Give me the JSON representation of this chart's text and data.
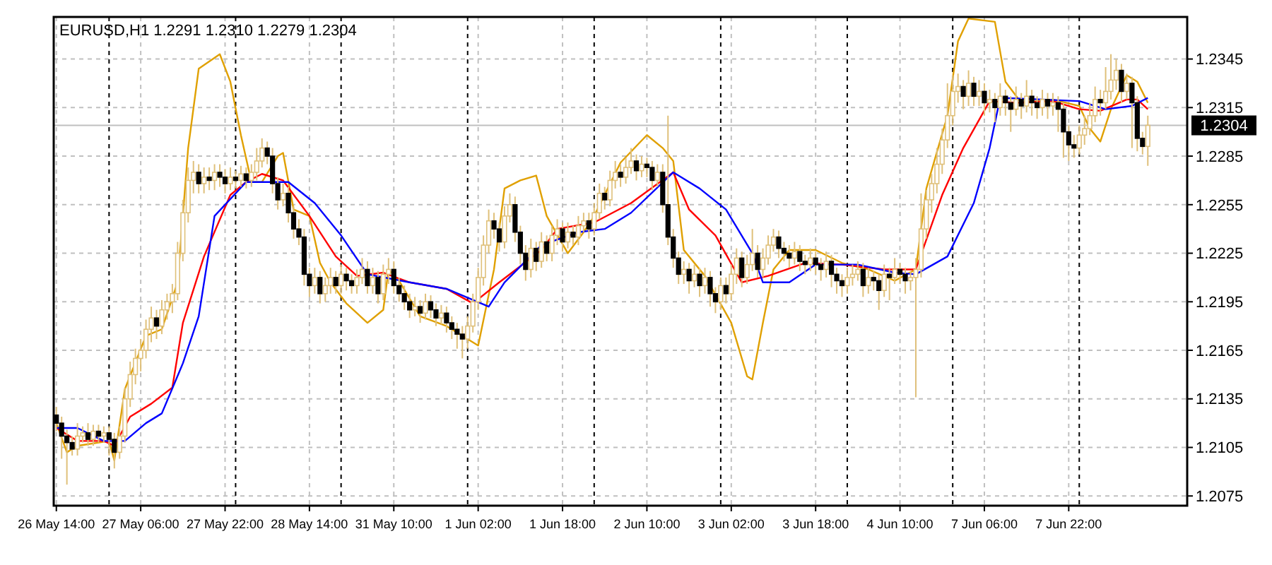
{
  "chart_data": {
    "type": "candlestick",
    "title": "EURUSD,H1  1.2291 1.2310 1.2279 1.2304",
    "color": "#dfc07a",
    "categories": [
      "26 May 14:00",
      null,
      null,
      null,
      null,
      null,
      null,
      null,
      null,
      null,
      null,
      null,
      null,
      null,
      null,
      null,
      "27 May 06:00",
      null,
      null,
      null,
      null,
      null,
      null,
      null,
      null,
      null,
      null,
      null,
      null,
      null,
      null,
      null,
      "27 May 22:00",
      null,
      null,
      null,
      null,
      null,
      null,
      null,
      null,
      null,
      null,
      null,
      null,
      null,
      null,
      null,
      "28 May 14:00",
      null,
      null,
      null,
      null,
      null,
      null,
      null,
      null,
      null,
      null,
      null,
      null,
      null,
      null,
      null,
      "31 May 10:00",
      null,
      null,
      null,
      null,
      null,
      null,
      null,
      null,
      null,
      null,
      null,
      null,
      null,
      null,
      null,
      "1 Jun 02:00",
      null,
      null,
      null,
      null,
      null,
      null,
      null,
      null,
      null,
      null,
      null,
      null,
      null,
      null,
      null,
      "1 Jun 18:00",
      null,
      null,
      null,
      null,
      null,
      null,
      null,
      null,
      null,
      null,
      null,
      null,
      null,
      null,
      null,
      "2 Jun 10:00",
      null,
      null,
      null,
      null,
      null,
      null,
      null,
      null,
      null,
      null,
      null,
      null,
      null,
      null,
      null,
      "3 Jun 02:00",
      null,
      null,
      null,
      null,
      null,
      null,
      null,
      null,
      null,
      null,
      null,
      null,
      null,
      null,
      null,
      "3 Jun 18:00",
      null,
      null,
      null,
      null,
      null,
      null,
      null,
      null,
      null,
      null,
      null,
      null,
      null,
      null,
      null,
      "4 Jun 10:00",
      null,
      null,
      null,
      null,
      null,
      null,
      null,
      null,
      null,
      null,
      null,
      null,
      null,
      null,
      null,
      "7 Jun 06:00",
      null,
      null,
      null,
      null,
      null,
      null,
      null,
      null,
      null,
      null,
      null,
      null,
      null,
      null,
      null,
      "7 Jun 22:00",
      null,
      null,
      null,
      null,
      null,
      null,
      null,
      null,
      null,
      null,
      null,
      null,
      null,
      null,
      null
    ],
    "colors": [
      "#000000",
      "#000000",
      "#000000",
      "#000000",
      "#dfc07a",
      "#dfc07a",
      "#000000",
      "#dfc07a",
      "#000000",
      "#dfc07a",
      "#000000",
      "#000000",
      "#dfc07a",
      "#dfc07a",
      "#dfc07a",
      "#dfc07a",
      "#dfc07a",
      "#dfc07a",
      "#dfc07a",
      "#000000",
      "#dfc07a",
      "#dfc07a",
      "#dfc07a",
      "#dfc07a",
      "#dfc07a",
      "#dfc07a",
      "#dfc07a",
      "#000000",
      "#dfc07a",
      "#000000",
      "#dfc07a",
      "#000000",
      "#000000",
      "#dfc07a",
      "#000000",
      "#dfc07a",
      "#000000",
      "#dfc07a",
      "#dfc07a",
      "#dfc07a",
      "#000000",
      "#000000",
      "#000000",
      "#dfc07a",
      "#000000",
      "#000000",
      "#000000",
      "#000000",
      "#000000",
      "#dfc07a",
      "#000000",
      "#dfc07a",
      "#dfc07a",
      "#000000",
      "#dfc07a",
      "#000000",
      "#000000",
      "#dfc07a",
      "#dfc07a",
      "#000000",
      "#dfc07a",
      "#000000",
      "#dfc07a",
      "#dfc07a",
      "#000000",
      "#000000",
      "#000000",
      "#000000",
      "#dfc07a",
      "#000000",
      "#dfc07a",
      "#000000",
      "#000000",
      "#dfc07a",
      "#000000",
      "#000000",
      "#000000",
      "#000000",
      "#dfc07a",
      "#dfc07a",
      "#dfc07a",
      "#dfc07a",
      "#dfc07a",
      "#000000",
      "#000000",
      "#dfc07a",
      "#dfc07a",
      "#000000",
      "#000000",
      "#000000",
      "#dfc07a",
      "#000000",
      "#dfc07a",
      "#000000",
      "#dfc07a",
      "#dfc07a",
      "#000000",
      "#dfc07a",
      "#000000",
      "#dfc07a",
      "#dfc07a",
      "#000000",
      "#dfc07a",
      "#dfc07a",
      "#000000",
      "#dfc07a",
      "#dfc07a",
      "#000000",
      "#dfc07a",
      "#dfc07a",
      "#000000",
      "#dfc07a",
      "#000000",
      "#000000",
      "#dfc07a",
      "#000000",
      "#000000",
      "#000000",
      "#000000",
      "#dfc07a",
      "#000000",
      "#dfc07a",
      "#000000",
      "#dfc07a",
      "#000000",
      "#000000",
      "#dfc07a",
      "#000000",
      "#dfc07a",
      "#dfc07a",
      "#000000",
      "#dfc07a",
      "#dfc07a",
      "#000000",
      "#dfc07a",
      "#dfc07a",
      "#dfc07a",
      "#000000",
      "#000000",
      "#000000",
      "#dfc07a",
      "#000000",
      "#000000",
      "#dfc07a",
      "#000000",
      "#000000",
      "#dfc07a",
      "#000000",
      "#000000",
      "#000000",
      "#dfc07a",
      "#dfc07a",
      "#dfc07a",
      "#000000",
      "#dfc07a",
      "#000000",
      "#000000",
      "#dfc07a",
      "#000000",
      "#dfc07a",
      "#000000",
      "#000000",
      "#dfc07a",
      "#dfc07a",
      "#dfc07a",
      "#dfc07a",
      "#dfc07a",
      "#dfc07a",
      "#dfc07a",
      "#dfc07a",
      "#dfc07a",
      "#dfc07a",
      "#000000",
      "#dfc07a",
      "#000000",
      "#dfc07a",
      "#000000",
      "#dfc07a",
      "#000000",
      "#dfc07a",
      "#000000",
      "#000000",
      "#dfc07a",
      "#000000",
      "#dfc07a",
      "#000000",
      "#000000",
      "#dfc07a",
      "#000000",
      "#dfc07a",
      "#000000",
      "#000000",
      "#000000",
      "#000000",
      "#dfc07a",
      "#dfc07a",
      "#dfc07a",
      "#dfc07a",
      "#000000",
      "#dfc07a",
      "#dfc07a",
      "#dfc07a",
      "#000000",
      "#dfc07a",
      "#000000",
      "#000000",
      "#000000",
      "#dfc07a"
    ],
    "ohlc": [
      [
        1.2125,
        1.213,
        1.2115,
        1.212
      ],
      [
        1.212,
        1.2124,
        1.2098,
        1.2112
      ],
      [
        1.2112,
        1.2116,
        1.2082,
        1.2108
      ],
      [
        1.2108,
        1.2112,
        1.21,
        1.2104
      ],
      [
        1.2104,
        1.212,
        1.21,
        1.2112
      ],
      [
        1.2112,
        1.2118,
        1.2108,
        1.2114
      ],
      [
        1.2114,
        1.212,
        1.2106,
        1.211
      ],
      [
        1.211,
        1.2119,
        1.2106,
        1.2115
      ],
      [
        1.2115,
        1.2119,
        1.2108,
        1.2112
      ],
      [
        1.2112,
        1.2118,
        1.2108,
        1.2114
      ],
      [
        1.2114,
        1.2118,
        1.21,
        1.211
      ],
      [
        1.211,
        1.2114,
        1.2092,
        1.2102
      ],
      [
        1.2102,
        1.2118,
        1.2098,
        1.2112
      ],
      [
        1.2112,
        1.2142,
        1.2108,
        1.2135
      ],
      [
        1.2135,
        1.2158,
        1.213,
        1.215
      ],
      [
        1.215,
        1.2166,
        1.2144,
        1.216
      ],
      [
        1.216,
        1.2172,
        1.2152,
        1.2165
      ],
      [
        1.2165,
        1.2184,
        1.216,
        1.2178
      ],
      [
        1.2178,
        1.2192,
        1.217,
        1.2185
      ],
      [
        1.2185,
        1.219,
        1.2172,
        1.218
      ],
      [
        1.218,
        1.2196,
        1.2175,
        1.219
      ],
      [
        1.219,
        1.22,
        1.2184,
        1.2195
      ],
      [
        1.2195,
        1.2206,
        1.2188,
        1.22
      ],
      [
        1.22,
        1.2232,
        1.2196,
        1.2225
      ],
      [
        1.2225,
        1.2258,
        1.222,
        1.225
      ],
      [
        1.225,
        1.2278,
        1.2244,
        1.227
      ],
      [
        1.227,
        1.2282,
        1.2262,
        1.2275
      ],
      [
        1.2275,
        1.228,
        1.2262,
        1.2268
      ],
      [
        1.2268,
        1.2278,
        1.2262,
        1.2272
      ],
      [
        1.2272,
        1.2278,
        1.2264,
        1.227
      ],
      [
        1.227,
        1.228,
        1.2264,
        1.2275
      ],
      [
        1.2275,
        1.228,
        1.2266,
        1.2272
      ],
      [
        1.2272,
        1.2277,
        1.2262,
        1.2268
      ],
      [
        1.2268,
        1.2278,
        1.2264,
        1.2272
      ],
      [
        1.2272,
        1.2276,
        1.2265,
        1.227
      ],
      [
        1.227,
        1.2279,
        1.2266,
        1.2274
      ],
      [
        1.2274,
        1.2278,
        1.2265,
        1.227
      ],
      [
        1.227,
        1.228,
        1.2266,
        1.2275
      ],
      [
        1.2275,
        1.229,
        1.227,
        1.2282
      ],
      [
        1.2282,
        1.2296,
        1.2278,
        1.229
      ],
      [
        1.229,
        1.2294,
        1.228,
        1.2285
      ],
      [
        1.2285,
        1.229,
        1.2262,
        1.2268
      ],
      [
        1.2268,
        1.2272,
        1.2252,
        1.2258
      ],
      [
        1.2258,
        1.2268,
        1.2254,
        1.2262
      ],
      [
        1.2262,
        1.2266,
        1.2244,
        1.225
      ],
      [
        1.225,
        1.2254,
        1.2234,
        1.224
      ],
      [
        1.224,
        1.2246,
        1.223,
        1.2235
      ],
      [
        1.2235,
        1.224,
        1.2205,
        1.2212
      ],
      [
        1.2212,
        1.2216,
        1.2198,
        1.2205
      ],
      [
        1.2205,
        1.2216,
        1.22,
        1.221
      ],
      [
        1.221,
        1.2214,
        1.2194,
        1.22
      ],
      [
        1.22,
        1.221,
        1.2195,
        1.2205
      ],
      [
        1.2205,
        1.2216,
        1.22,
        1.221
      ],
      [
        1.221,
        1.2214,
        1.22,
        1.2205
      ],
      [
        1.2205,
        1.2218,
        1.22,
        1.2212
      ],
      [
        1.2212,
        1.2216,
        1.2202,
        1.2208
      ],
      [
        1.2208,
        1.2212,
        1.22,
        1.2205
      ],
      [
        1.2205,
        1.2215,
        1.22,
        1.221
      ],
      [
        1.221,
        1.2222,
        1.2206,
        1.2215
      ],
      [
        1.2215,
        1.222,
        1.22,
        1.2205
      ],
      [
        1.2205,
        1.2216,
        1.22,
        1.221
      ],
      [
        1.221,
        1.2214,
        1.2194,
        1.22
      ],
      [
        1.22,
        1.2218,
        1.2196,
        1.2212
      ],
      [
        1.2212,
        1.2222,
        1.2206,
        1.2215
      ],
      [
        1.2215,
        1.222,
        1.22,
        1.2205
      ],
      [
        1.2205,
        1.221,
        1.2195,
        1.22
      ],
      [
        1.22,
        1.2205,
        1.219,
        1.2195
      ],
      [
        1.2195,
        1.22,
        1.2185,
        1.219
      ],
      [
        1.219,
        1.2198,
        1.2186,
        1.2192
      ],
      [
        1.2192,
        1.2196,
        1.2182,
        1.2188
      ],
      [
        1.2188,
        1.22,
        1.2184,
        1.2195
      ],
      [
        1.2195,
        1.2199,
        1.2185,
        1.219
      ],
      [
        1.219,
        1.2194,
        1.218,
        1.2185
      ],
      [
        1.2185,
        1.2193,
        1.2181,
        1.2188
      ],
      [
        1.2188,
        1.2192,
        1.2176,
        1.2182
      ],
      [
        1.2182,
        1.2186,
        1.2172,
        1.2178
      ],
      [
        1.2178,
        1.2182,
        1.2166,
        1.2175
      ],
      [
        1.2175,
        1.218,
        1.216,
        1.2172
      ],
      [
        1.2172,
        1.2186,
        1.2166,
        1.218
      ],
      [
        1.218,
        1.22,
        1.2176,
        1.2195
      ],
      [
        1.2195,
        1.2216,
        1.219,
        1.221
      ],
      [
        1.221,
        1.2236,
        1.2205,
        1.223
      ],
      [
        1.223,
        1.2252,
        1.2225,
        1.2245
      ],
      [
        1.2245,
        1.225,
        1.2234,
        1.224
      ],
      [
        1.224,
        1.2244,
        1.2226,
        1.2232
      ],
      [
        1.2232,
        1.2254,
        1.2228,
        1.2248
      ],
      [
        1.2248,
        1.2262,
        1.2244,
        1.2255
      ],
      [
        1.2255,
        1.226,
        1.2232,
        1.2238
      ],
      [
        1.2238,
        1.2242,
        1.2218,
        1.2225
      ],
      [
        1.2225,
        1.223,
        1.2208,
        1.2215
      ],
      [
        1.2215,
        1.2234,
        1.221,
        1.2228
      ],
      [
        1.2228,
        1.2232,
        1.2214,
        1.222
      ],
      [
        1.222,
        1.2238,
        1.2216,
        1.2232
      ],
      [
        1.2232,
        1.2236,
        1.222,
        1.2225
      ],
      [
        1.2225,
        1.2242,
        1.222,
        1.2236
      ],
      [
        1.2236,
        1.2246,
        1.223,
        1.224
      ],
      [
        1.224,
        1.2244,
        1.2226,
        1.2232
      ],
      [
        1.2232,
        1.2244,
        1.2228,
        1.2238
      ],
      [
        1.2238,
        1.2242,
        1.223,
        1.2235
      ],
      [
        1.2235,
        1.2248,
        1.223,
        1.2242
      ],
      [
        1.2242,
        1.225,
        1.2238,
        1.2245
      ],
      [
        1.2245,
        1.225,
        1.2234,
        1.224
      ],
      [
        1.224,
        1.2256,
        1.2236,
        1.225
      ],
      [
        1.225,
        1.2268,
        1.2246,
        1.2262
      ],
      [
        1.2262,
        1.2266,
        1.2252,
        1.2258
      ],
      [
        1.2258,
        1.2276,
        1.2254,
        1.227
      ],
      [
        1.227,
        1.2282,
        1.2265,
        1.2275
      ],
      [
        1.2275,
        1.228,
        1.2266,
        1.2272
      ],
      [
        1.2272,
        1.2284,
        1.2268,
        1.2278
      ],
      [
        1.2278,
        1.229,
        1.2274,
        1.2282
      ],
      [
        1.2282,
        1.2286,
        1.227,
        1.2276
      ],
      [
        1.2276,
        1.2285,
        1.2272,
        1.228
      ],
      [
        1.228,
        1.2284,
        1.2272,
        1.2278
      ],
      [
        1.2278,
        1.2282,
        1.2264,
        1.227
      ],
      [
        1.227,
        1.228,
        1.2266,
        1.2275
      ],
      [
        1.2275,
        1.228,
        1.225,
        1.2255
      ],
      [
        1.2255,
        1.231,
        1.223,
        1.2235
      ],
      [
        1.2235,
        1.224,
        1.2216,
        1.2222
      ],
      [
        1.2222,
        1.2226,
        1.2206,
        1.2212
      ],
      [
        1.2212,
        1.222,
        1.2206,
        1.2215
      ],
      [
        1.2215,
        1.2219,
        1.22,
        1.2208
      ],
      [
        1.2208,
        1.2218,
        1.2204,
        1.2212
      ],
      [
        1.2212,
        1.2216,
        1.2198,
        1.2205
      ],
      [
        1.2205,
        1.2216,
        1.22,
        1.221
      ],
      [
        1.221,
        1.2214,
        1.2192,
        1.22
      ],
      [
        1.22,
        1.2204,
        1.2188,
        1.2195
      ],
      [
        1.2195,
        1.221,
        1.219,
        1.2205
      ],
      [
        1.2205,
        1.221,
        1.2194,
        1.22
      ],
      [
        1.22,
        1.2218,
        1.2196,
        1.2212
      ],
      [
        1.2212,
        1.2228,
        1.2206,
        1.2222
      ],
      [
        1.2222,
        1.2226,
        1.2204,
        1.221
      ],
      [
        1.221,
        1.2224,
        1.2206,
        1.2218
      ],
      [
        1.2218,
        1.224,
        1.2214,
        1.2225
      ],
      [
        1.2225,
        1.223,
        1.221,
        1.2215
      ],
      [
        1.2215,
        1.2228,
        1.221,
        1.2222
      ],
      [
        1.2222,
        1.2236,
        1.2218,
        1.223
      ],
      [
        1.223,
        1.224,
        1.2226,
        1.2235
      ],
      [
        1.2235,
        1.2239,
        1.2222,
        1.2228
      ],
      [
        1.2228,
        1.2232,
        1.222,
        1.2225
      ],
      [
        1.2225,
        1.223,
        1.2216,
        1.2222
      ],
      [
        1.2222,
        1.2232,
        1.2218,
        1.2226
      ],
      [
        1.2226,
        1.223,
        1.2214,
        1.222
      ],
      [
        1.222,
        1.2224,
        1.2212,
        1.2218
      ],
      [
        1.2218,
        1.2228,
        1.2214,
        1.2222
      ],
      [
        1.2222,
        1.2226,
        1.2212,
        1.2218
      ],
      [
        1.2218,
        1.2222,
        1.2208,
        1.2215
      ],
      [
        1.2215,
        1.2226,
        1.221,
        1.222
      ],
      [
        1.222,
        1.2224,
        1.2204,
        1.2212
      ],
      [
        1.2212,
        1.2216,
        1.22,
        1.2208
      ],
      [
        1.2208,
        1.2212,
        1.2198,
        1.2205
      ],
      [
        1.2205,
        1.2216,
        1.22,
        1.221
      ],
      [
        1.221,
        1.2218,
        1.2205,
        1.2212
      ],
      [
        1.2212,
        1.222,
        1.2208,
        1.2215
      ],
      [
        1.2215,
        1.2219,
        1.2198,
        1.2205
      ],
      [
        1.2205,
        1.2216,
        1.22,
        1.221
      ],
      [
        1.221,
        1.2214,
        1.2202,
        1.2208
      ],
      [
        1.2208,
        1.2212,
        1.219,
        1.2202
      ],
      [
        1.2202,
        1.2218,
        1.2198,
        1.2212
      ],
      [
        1.2212,
        1.2216,
        1.2196,
        1.221
      ],
      [
        1.221,
        1.2222,
        1.2206,
        1.2215
      ],
      [
        1.2215,
        1.2219,
        1.2206,
        1.2212
      ],
      [
        1.2212,
        1.2216,
        1.22,
        1.2208
      ],
      [
        1.2208,
        1.2214,
        1.2202,
        1.221
      ],
      [
        1.221,
        1.2222,
        1.2136,
        1.2215
      ],
      [
        1.2215,
        1.2262,
        1.221,
        1.224
      ],
      [
        1.224,
        1.2264,
        1.2234,
        1.2258
      ],
      [
        1.2258,
        1.2274,
        1.225,
        1.2268
      ],
      [
        1.2268,
        1.229,
        1.2262,
        1.228
      ],
      [
        1.228,
        1.2302,
        1.2274,
        1.2295
      ],
      [
        1.2295,
        1.233,
        1.229,
        1.231
      ],
      [
        1.231,
        1.2335,
        1.2304,
        1.2325
      ],
      [
        1.2325,
        1.2336,
        1.2318,
        1.2328
      ],
      [
        1.2328,
        1.2332,
        1.2314,
        1.2322
      ],
      [
        1.2322,
        1.2338,
        1.2316,
        1.233
      ],
      [
        1.233,
        1.2334,
        1.2316,
        1.2322
      ],
      [
        1.2322,
        1.2332,
        1.2316,
        1.2325
      ],
      [
        1.2325,
        1.233,
        1.231,
        1.2318
      ],
      [
        1.2318,
        1.2326,
        1.2312,
        1.232
      ],
      [
        1.232,
        1.2324,
        1.2306,
        1.2315
      ],
      [
        1.2315,
        1.233,
        1.231,
        1.2322
      ],
      [
        1.2322,
        1.2326,
        1.231,
        1.2318
      ],
      [
        1.2318,
        1.2322,
        1.23,
        1.2314
      ],
      [
        1.2314,
        1.2328,
        1.231,
        1.232
      ],
      [
        1.232,
        1.2324,
        1.2308,
        1.2316
      ],
      [
        1.2316,
        1.2332,
        1.2312,
        1.2322
      ],
      [
        1.2322,
        1.2326,
        1.231,
        1.2318
      ],
      [
        1.2318,
        1.2322,
        1.2308,
        1.2315
      ],
      [
        1.2315,
        1.2326,
        1.231,
        1.232
      ],
      [
        1.232,
        1.2324,
        1.2308,
        1.2316
      ],
      [
        1.2316,
        1.2324,
        1.231,
        1.2318
      ],
      [
        1.2318,
        1.2322,
        1.23,
        1.2314
      ],
      [
        1.2314,
        1.2318,
        1.2284,
        1.23
      ],
      [
        1.23,
        1.2304,
        1.2282,
        1.2292
      ],
      [
        1.2292,
        1.2298,
        1.2284,
        1.229
      ],
      [
        1.229,
        1.2304,
        1.2286,
        1.2298
      ],
      [
        1.2298,
        1.231,
        1.2292,
        1.2302
      ],
      [
        1.2302,
        1.2318,
        1.2298,
        1.231
      ],
      [
        1.231,
        1.2328,
        1.2306,
        1.232
      ],
      [
        1.232,
        1.2326,
        1.231,
        1.2318
      ],
      [
        1.2318,
        1.234,
        1.2314,
        1.2325
      ],
      [
        1.2325,
        1.2348,
        1.232,
        1.2332
      ],
      [
        1.2332,
        1.2345,
        1.2326,
        1.2338
      ],
      [
        1.2338,
        1.2342,
        1.2318,
        1.2325
      ],
      [
        1.2325,
        1.2336,
        1.232,
        1.233
      ],
      [
        1.233,
        1.2334,
        1.229,
        1.2318
      ],
      [
        1.2318,
        1.2322,
        1.2288,
        1.2296
      ],
      [
        1.2296,
        1.23,
        1.2286,
        1.2291
      ],
      [
        1.2291,
        1.231,
        1.2279,
        1.2304
      ]
    ],
    "series": [
      {
        "type": "line",
        "color": "#e0a000",
        "values": [
          1.212,
          null,
          1.2102,
          null,
          1.2106,
          null,
          null,
          null,
          null,
          null,
          1.2109,
          1.2097,
          null,
          1.2141,
          null,
          null,
          null,
          1.2174,
          null,
          null,
          1.2178,
          null,
          null,
          1.2207,
          null,
          1.229,
          null,
          1.2339,
          null,
          null,
          null,
          1.2348,
          null,
          1.2331,
          null,
          1.2298,
          null,
          1.2269,
          null,
          1.2269,
          null,
          null,
          1.2285,
          1.2287,
          null,
          1.2252,
          null,
          null,
          1.2248,
          null,
          1.2219,
          null,
          1.2207,
          null,
          null,
          1.2194,
          null,
          null,
          null,
          1.2182,
          null,
          null,
          1.219,
          1.2215,
          null,
          1.2208,
          null,
          null,
          null,
          1.2186,
          null,
          null,
          null,
          null,
          1.218,
          null,
          null,
          null,
          null,
          null,
          1.2168,
          null,
          null,
          1.2215,
          null,
          1.2265,
          null,
          null,
          1.227,
          null,
          null,
          1.2273,
          null,
          1.2248,
          null,
          null,
          null,
          1.2225,
          null,
          null,
          1.2238,
          null,
          1.2248,
          null,
          null,
          null,
          null,
          1.2281,
          null,
          null,
          null,
          null,
          1.2298,
          null,
          null,
          1.229,
          null,
          1.2282,
          null,
          1.2227,
          null,
          null,
          null,
          1.2211,
          null,
          null,
          null,
          null,
          1.2182,
          null,
          null,
          1.2149,
          1.2147,
          null,
          1.2182,
          null,
          1.2215,
          null,
          null,
          1.2227,
          null,
          null,
          null,
          null,
          1.2227,
          null,
          null,
          null,
          null,
          1.2219,
          null,
          null,
          null,
          null,
          1.2215,
          null,
          null,
          null,
          null,
          1.2208,
          null,
          null,
          null,
          1.2215,
          null,
          1.2265,
          null,
          null,
          null,
          1.231,
          null,
          1.2356,
          null,
          1.237,
          null,
          null,
          null,
          null,
          1.2368,
          null,
          1.2331,
          null,
          null,
          1.2318,
          null,
          null,
          null,
          null,
          null,
          1.232,
          null,
          null,
          null,
          null,
          1.2316,
          null,
          1.2302,
          null,
          1.2294,
          null,
          1.2314,
          null,
          null,
          1.2335,
          null,
          1.2331,
          null,
          1.2318
        ]
      },
      {
        "type": "line",
        "color": "#ff0000",
        "values": [
          1.2117,
          null,
          null,
          null,
          1.2109,
          null,
          null,
          null,
          null,
          1.2109,
          null,
          1.2106,
          null,
          null,
          1.2124,
          null,
          null,
          null,
          1.2132,
          null,
          null,
          null,
          1.2142,
          null,
          1.2182,
          null,
          null,
          null,
          1.2223,
          null,
          null,
          null,
          null,
          1.2261,
          null,
          null,
          1.2269,
          null,
          null,
          1.2274,
          null,
          null,
          null,
          1.227,
          null,
          null,
          null,
          null,
          1.2248,
          null,
          null,
          null,
          null,
          1.2223,
          null,
          null,
          null,
          1.2211,
          null,
          null,
          null,
          null,
          1.2213,
          null,
          null,
          null,
          null,
          1.2207,
          null,
          null,
          null,
          null,
          null,
          null,
          1.2203,
          null,
          null,
          null,
          null,
          1.2194,
          null,
          null,
          null,
          null,
          1.2207,
          null,
          null,
          null,
          null,
          null,
          null,
          null,
          1.2227,
          null,
          null,
          1.224,
          null,
          null,
          null,
          null,
          null,
          null,
          1.2244,
          null,
          null,
          null,
          null,
          null,
          null,
          1.2256,
          null,
          null,
          null,
          null,
          null,
          null,
          null,
          1.2275,
          null,
          null,
          1.2252,
          null,
          null,
          null,
          null,
          1.2236,
          null,
          null,
          null,
          null,
          1.2207,
          null,
          null,
          null,
          null,
          1.2211,
          null,
          null,
          null,
          null,
          null,
          null,
          1.2219,
          null,
          null,
          null,
          null,
          null,
          null,
          1.2218,
          null,
          null,
          null,
          null,
          null,
          null,
          null,
          1.2215,
          null,
          null,
          null,
          null,
          null,
          1.2215,
          null,
          null,
          null,
          null,
          1.2261,
          null,
          null,
          null,
          1.229,
          null,
          null,
          null,
          null,
          1.2319,
          null,
          null,
          null,
          null,
          1.2318,
          null,
          null,
          null,
          null,
          null,
          null,
          1.2319,
          null,
          null,
          null,
          null,
          1.2314,
          null,
          null,
          null,
          1.2313,
          null,
          null,
          null,
          null,
          1.232,
          null,
          1.232,
          null,
          1.2314
        ]
      },
      {
        "type": "line",
        "color": "#0000ff",
        "values": [
          1.2117,
          null,
          null,
          null,
          1.2117,
          null,
          null,
          null,
          null,
          1.2109,
          null,
          null,
          null,
          1.2109,
          null,
          null,
          null,
          1.212,
          null,
          null,
          1.2126,
          null,
          null,
          null,
          1.2157,
          null,
          null,
          1.2186,
          null,
          null,
          1.2248,
          null,
          null,
          null,
          null,
          null,
          1.2269,
          null,
          null,
          null,
          null,
          null,
          null,
          null,
          1.2269,
          null,
          null,
          null,
          null,
          1.2256,
          null,
          null,
          null,
          null,
          1.2236,
          null,
          null,
          null,
          null,
          1.2212,
          null,
          null,
          null,
          null,
          null,
          null,
          null,
          1.2207,
          null,
          null,
          null,
          null,
          null,
          null,
          1.2203,
          null,
          null,
          null,
          null,
          null,
          null,
          null,
          1.2192,
          null,
          null,
          1.2207,
          null,
          null,
          null,
          null,
          null,
          null,
          1.223,
          null,
          null,
          null,
          null,
          null,
          null,
          1.2238,
          null,
          null,
          null,
          null,
          1.224,
          null,
          null,
          null,
          null,
          1.225,
          null,
          null,
          null,
          null,
          null,
          null,
          null,
          1.2275,
          null,
          null,
          null,
          null,
          1.2265,
          null,
          null,
          null,
          null,
          1.2252,
          null,
          null,
          null,
          null,
          1.2225,
          null,
          1.2207,
          null,
          null,
          null,
          null,
          1.2207,
          null,
          null,
          null,
          null,
          1.2218,
          null,
          null,
          null,
          null,
          null,
          null,
          null,
          1.2218,
          null,
          null,
          null,
          null,
          null,
          null,
          1.2213,
          null,
          null,
          null,
          1.2212,
          null,
          null,
          null,
          null,
          null,
          1.2223,
          null,
          null,
          null,
          null,
          1.2256,
          null,
          null,
          1.229,
          null,
          1.2321,
          null,
          null,
          null,
          null,
          null,
          null,
          null,
          1.232,
          null,
          null,
          null,
          null,
          null,
          null,
          1.2319,
          null,
          null,
          null,
          null,
          1.2314,
          null,
          null,
          null,
          null,
          1.2316,
          null,
          null,
          1.2321
        ]
      }
    ],
    "ylim": [
      1.2069,
      1.2371
    ],
    "yticks": [
      1.2075,
      1.2105,
      1.2135,
      1.2165,
      1.2195,
      1.2225,
      1.2255,
      1.2285,
      1.2315,
      1.2345
    ],
    "grid": true,
    "ref_lines": [
      {
        "axis": "y",
        "value": 1.2304,
        "label": "1.2304",
        "color": "#c0c0c0",
        "line_style": "solid"
      }
    ]
  }
}
